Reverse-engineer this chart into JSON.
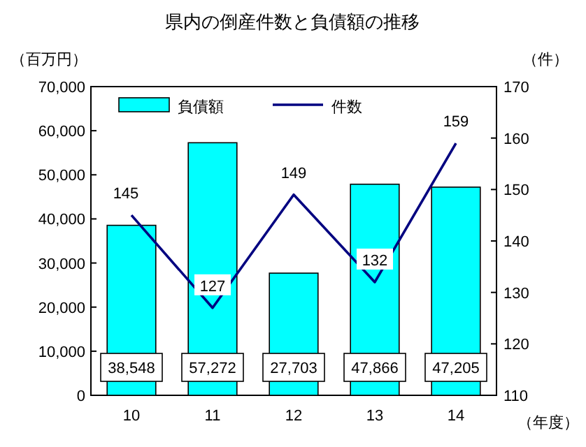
{
  "chart_data": {
    "type": "bar",
    "title": "県内の倒産件数と負債額の推移",
    "ylabel": "（百万円）",
    "y2label": "（件）",
    "xlabel": "（年度）",
    "categories": [
      "10",
      "11",
      "12",
      "13",
      "14"
    ],
    "series": [
      {
        "name": "負債額",
        "color": "#00ffff",
        "values": [
          38548,
          57272,
          27703,
          47866,
          47205
        ],
        "value_labels": [
          "38,548",
          "57,272",
          "27,703",
          "47,866",
          "47,205"
        ]
      },
      {
        "name": "件数",
        "type": "line",
        "axis": "y2",
        "color": "#000080",
        "values": [
          145,
          127,
          149,
          132,
          159
        ]
      }
    ],
    "ylim": [
      0,
      70000
    ],
    "yticks": [
      0,
      {
        "value": 10000,
        "label": "10,000"
      },
      {
        "value": 20000,
        "label": "20,000"
      },
      {
        "value": 30000,
        "label": "30,000"
      },
      {
        "value": 40000,
        "label": "40,000"
      },
      {
        "value": 50000,
        "label": "50,000"
      },
      {
        "value": 60000,
        "label": "60,000"
      },
      {
        "value": 70000,
        "label": "70,000"
      }
    ],
    "y2lim": [
      110,
      170
    ],
    "y2ticks": [
      110,
      120,
      130,
      140,
      150,
      160,
      170
    ],
    "data_labels": true,
    "legend": "top",
    "grid": false,
    "marker": "none",
    "line_style": "solid"
  }
}
